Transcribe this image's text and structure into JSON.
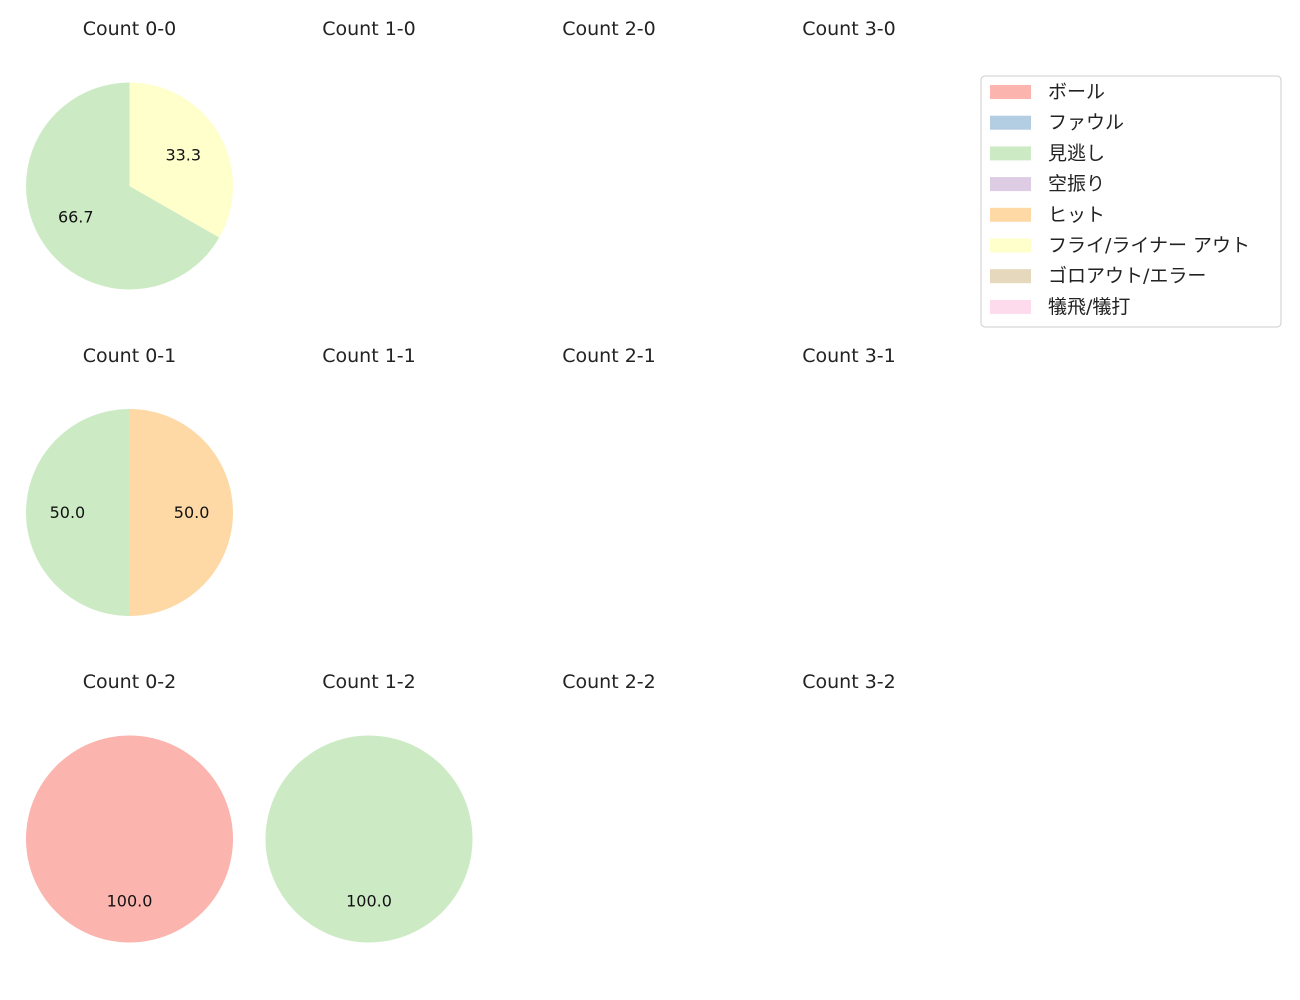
{
  "figure": {
    "legend_title": "",
    "legend_placement": "top-right"
  },
  "chart_data": {
    "type": "pie",
    "legend": [
      {
        "name": "ボール",
        "color": "#fbb4ae"
      },
      {
        "name": "ファウル",
        "color": "#b3cde3"
      },
      {
        "name": "見逃し",
        "color": "#ccebc5"
      },
      {
        "name": "空振り",
        "color": "#decbe4"
      },
      {
        "name": "ヒット",
        "color": "#fed9a6"
      },
      {
        "name": "フライ/ライナー アウト",
        "color": "#ffffcc"
      },
      {
        "name": "ゴロアウト/エラー",
        "color": "#e5d8bd"
      },
      {
        "name": "犠飛/犠打",
        "color": "#fddaec"
      }
    ],
    "panels": [
      {
        "title": "Count 0-0",
        "slices": [
          {
            "category": "見逃し",
            "value": 66.7,
            "label": "66.7"
          },
          {
            "category": "フライ/ライナー アウト",
            "value": 33.3,
            "label": "33.3"
          }
        ]
      },
      {
        "title": "Count 1-0",
        "slices": []
      },
      {
        "title": "Count 2-0",
        "slices": []
      },
      {
        "title": "Count 3-0",
        "slices": []
      },
      {
        "title": "Count 0-1",
        "slices": [
          {
            "category": "見逃し",
            "value": 50.0,
            "label": "50.0"
          },
          {
            "category": "ヒット",
            "value": 50.0,
            "label": "50.0"
          }
        ]
      },
      {
        "title": "Count 1-1",
        "slices": []
      },
      {
        "title": "Count 2-1",
        "slices": []
      },
      {
        "title": "Count 3-1",
        "slices": []
      },
      {
        "title": "Count 0-2",
        "slices": [
          {
            "category": "ボール",
            "value": 100.0,
            "label": "100.0"
          }
        ]
      },
      {
        "title": "Count 1-2",
        "slices": [
          {
            "category": "見逃し",
            "value": 100.0,
            "label": "100.0"
          }
        ]
      },
      {
        "title": "Count 2-2",
        "slices": []
      },
      {
        "title": "Count 3-2",
        "slices": []
      }
    ]
  }
}
